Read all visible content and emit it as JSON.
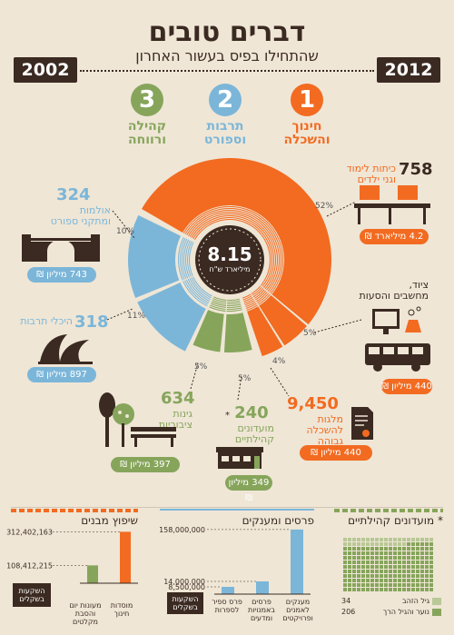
{
  "header": {
    "title": "דברים טובים",
    "subtitle": "שהתחילו בפיס בעשור האחרון",
    "year_left": "2002",
    "year_right": "2012"
  },
  "categories": [
    {
      "number": "1",
      "label_line1": "חינוך",
      "label_line2": "והשכלה",
      "color": "#f26b21"
    },
    {
      "number": "2",
      "label_line1": "תרבות",
      "label_line2": "וספורט",
      "color": "#7bb6d9"
    },
    {
      "number": "3",
      "label_line1": "קהילה",
      "label_line2": "ורווחה",
      "color": "#86a55b"
    }
  ],
  "center": {
    "value": "8.15",
    "label": "מיליארד ש\"ח"
  },
  "ring_percents": {
    "p52": "52%",
    "p10": "10%",
    "p11": "11%",
    "p5a": "5%",
    "p5b": "5%",
    "p5c": "5%",
    "p4": "4%"
  },
  "items": {
    "classrooms": {
      "count": "758",
      "label_line1": "כיתות לימוד",
      "label_line2": "וגני ילדים",
      "amount": "4.2 מיליארד ₪"
    },
    "equipment": {
      "label_line1": "ציוד,",
      "label_line2": "מחשבים והסעות",
      "amount": "440 מיליון ₪"
    },
    "scholarships": {
      "count": "9,450",
      "label_line1": "מלגות",
      "label_line2": "להשכלה",
      "label_line3": "גבוהה",
      "amount": "440 מיליון ₪"
    },
    "halls": {
      "count": "324",
      "label_line1": "אולמות",
      "label_line2": "ומתקני ספורט",
      "amount": "743 מיליון ₪"
    },
    "culture": {
      "count": "318",
      "label": "היכלי תרבות",
      "amount": "897 מיליון ₪"
    },
    "gardens": {
      "count": "634",
      "label_line1": "גינות",
      "label_line2": "ציבוריות",
      "amount": "397 מיליון ₪"
    },
    "clubs": {
      "count": "240",
      "star": "*",
      "label_line1": "מועדונים",
      "label_line2": "קהילתיים",
      "amount": "349 מיליון ₪"
    }
  },
  "bottom": {
    "renovation": {
      "title": "שיפוץ מבנים",
      "unit_line1": "השקעות",
      "unit_line2": "בשקלים",
      "chart_data": {
        "type": "bar",
        "categories": [
          "מוסדות חינוך",
          "מעונות יום והסבת מקלטים"
        ],
        "values": [
          312402163,
          108412215
        ],
        "tick_labels": [
          "312,402,163",
          "108,412,215"
        ],
        "colors": [
          "#f26b21",
          "#86a55b"
        ]
      }
    },
    "prizes": {
      "title": "פרסים ומענקים",
      "unit_line1": "השקעות",
      "unit_line2": "בשקלים",
      "chart_data": {
        "type": "bar",
        "categories": [
          "מענקים לאמנים ופרויקטים",
          "פרסים באמנויות ומדעים",
          "פרס ספיר לספרות"
        ],
        "values": [
          158000000,
          14000000,
          8500000
        ],
        "tick_labels": [
          "158,000,000",
          "14,000,000",
          "8,500,000"
        ],
        "colors": [
          "#7bb6d9",
          "#7bb6d9",
          "#7bb6d9"
        ]
      }
    },
    "clubs": {
      "title": "מועדונים קהילתיים",
      "star": "*",
      "legend": [
        {
          "label": "גיל הזהב",
          "value": "34"
        },
        {
          "label": "נוער והגיל הרך",
          "value": "206"
        }
      ],
      "chart_data": {
        "type": "table",
        "golden_age": 34,
        "youth": 206,
        "total": 240
      },
      "color": "#86a55b"
    }
  }
}
